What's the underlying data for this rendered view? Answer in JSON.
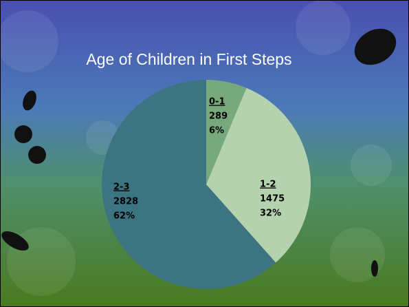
{
  "chart_data": {
    "type": "pie",
    "title": "Age of Children in First Steps",
    "categories": [
      "0-1",
      "1-2",
      "2-3"
    ],
    "values": [
      289,
      1475,
      2828
    ],
    "percent_labels": [
      "6%",
      "32%",
      "62%"
    ],
    "colors": [
      "#77a97c",
      "#b5d2ae",
      "#3c7481"
    ]
  }
}
